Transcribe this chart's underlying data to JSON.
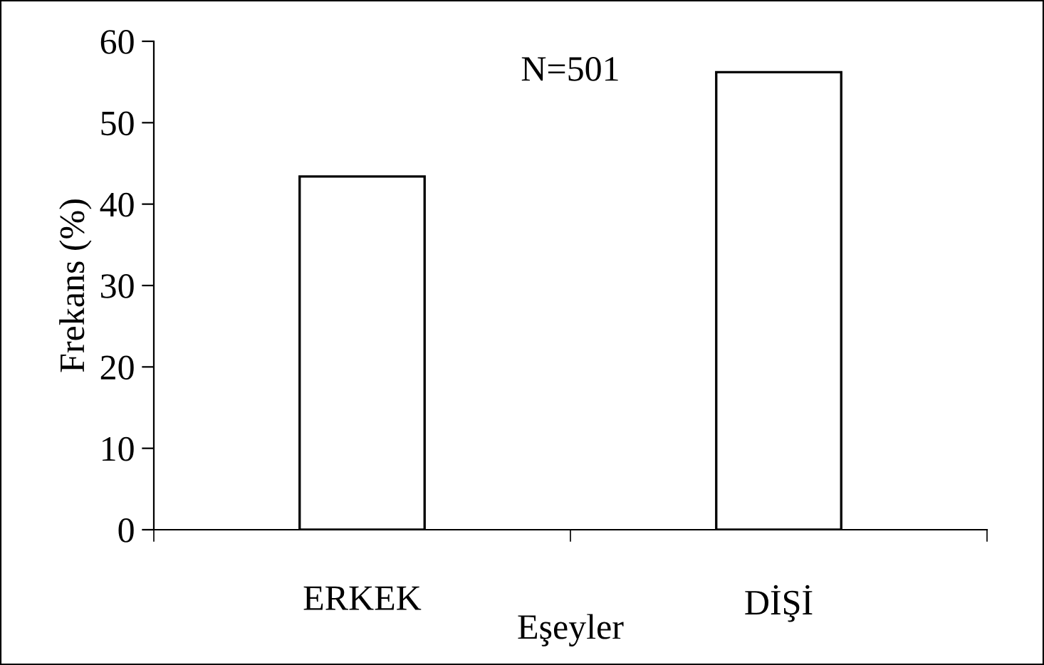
{
  "chart_data": {
    "type": "bar",
    "categories": [
      "ERKEK",
      "DİŞİ"
    ],
    "values": [
      43.4,
      56.2
    ],
    "color": "#ffffff",
    "ylim": [
      0,
      60
    ],
    "yticks": [
      0,
      10,
      20,
      30,
      40,
      50,
      60
    ],
    "xlabel": "Eşeyler",
    "ylabel": "Frekans (%)",
    "annotations": [
      "N=501"
    ],
    "grid": false,
    "legend": false
  }
}
